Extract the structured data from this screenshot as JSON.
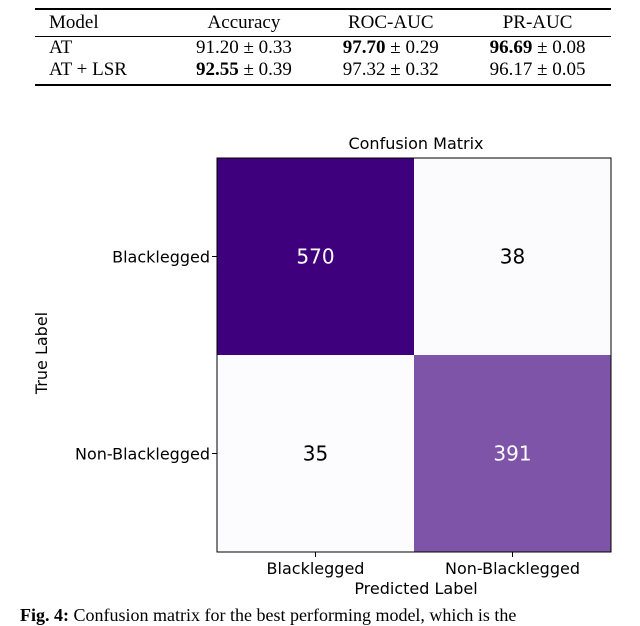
{
  "table": {
    "headers": [
      "Model",
      "Accuracy",
      "ROC-AUC",
      "PR-AUC"
    ],
    "rows": [
      {
        "model": "AT",
        "accuracy": {
          "value": "91.20",
          "pm": " ± 0.33",
          "bold": false
        },
        "roc_auc": {
          "value": "97.70",
          "pm": " ± 0.29",
          "bold": true
        },
        "pr_auc": {
          "value": "96.69",
          "pm": " ± 0.08",
          "bold": true
        }
      },
      {
        "model": "AT + LSR",
        "accuracy": {
          "value": "92.55",
          "pm": " ± 0.39",
          "bold": true
        },
        "roc_auc": {
          "value": "97.32",
          "pm": " ± 0.32",
          "bold": false
        },
        "pr_auc": {
          "value": "96.17",
          "pm": " ± 0.05",
          "bold": false
        }
      }
    ]
  },
  "chart_data": {
    "type": "heatmap",
    "title": "Confusion Matrix",
    "xlabel": "Predicted Label",
    "ylabel": "True Label",
    "x_categories": [
      "Blacklegged",
      "Non-Blacklegged"
    ],
    "y_categories": [
      "Blacklegged",
      "Non-Blacklegged"
    ],
    "values": [
      [
        570,
        38
      ],
      [
        35,
        391
      ]
    ],
    "colormap": "Purples",
    "colors": {
      "max": "#3f007d",
      "min": "#fcfbfd",
      "text_dark": "#000000",
      "text_light": "#ffffff"
    }
  },
  "caption": {
    "label": "Fig. 4:",
    "text": "Confusion matrix for the best performing model, which is the"
  }
}
